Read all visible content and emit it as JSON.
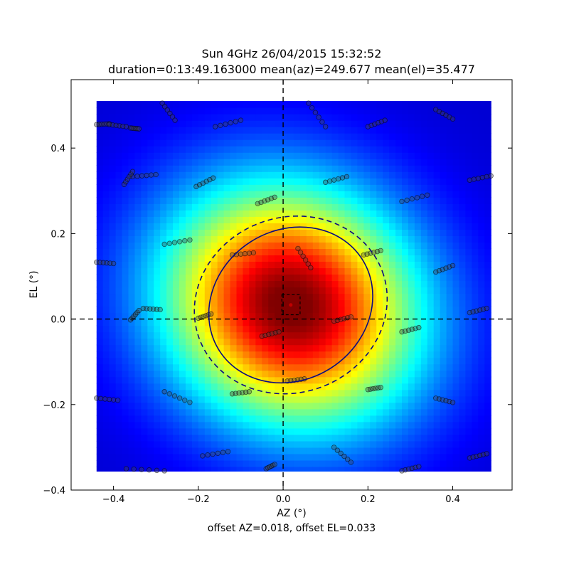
{
  "chart_data": {
    "type": "heatmap",
    "title": "Sun 4GHz 26/04/2015 15:32:52",
    "subtitle": "duration=0:13:49.163000 mean(az)=249.677 mean(el)=35.477",
    "xlabel": "AZ (°)",
    "ylabel": "EL (°)",
    "footer": "offset AZ=0.018, offset EL=0.033",
    "xlim": [
      -0.5,
      0.54
    ],
    "ylim": [
      -0.4,
      0.56
    ],
    "heatmap_extent": {
      "x": [
        -0.44,
        0.49
      ],
      "y": [
        -0.36,
        0.51
      ]
    },
    "beam_center": {
      "az": 0.018,
      "el": 0.033
    },
    "colormap": "jet",
    "x_ticks": [
      -0.4,
      -0.2,
      0.0,
      0.2,
      0.4
    ],
    "x_tick_labels": [
      "−0.4",
      "−0.2",
      "0.0",
      "0.2",
      "0.4"
    ],
    "y_ticks": [
      -0.4,
      -0.2,
      0.0,
      0.2,
      0.4
    ],
    "y_tick_labels": [
      "−0.4",
      "−0.2",
      "0.0",
      "0.2",
      "0.4"
    ],
    "ellipses": [
      {
        "name": "inner",
        "style": "solid",
        "center": [
          0.018,
          0.033
        ],
        "rx": 0.2,
        "ry": 0.175,
        "angle_deg": -33
      },
      {
        "name": "outer",
        "style": "dashed",
        "center": [
          0.018,
          0.033
        ],
        "rx": 0.23,
        "ry": 0.205,
        "angle_deg": -20
      }
    ],
    "center_box": {
      "az": [
        -0.003,
        0.04
      ],
      "el": [
        0.01,
        0.057
      ]
    },
    "scan_segments": [
      {
        "x0": -0.44,
        "y0": 0.455,
        "x1": -0.41,
        "y1": 0.457
      },
      {
        "x0": -0.41,
        "y0": 0.455,
        "x1": -0.37,
        "y1": 0.45
      },
      {
        "x0": -0.36,
        "y0": 0.447,
        "x1": -0.34,
        "y1": 0.445
      },
      {
        "x0": -0.285,
        "y0": 0.505,
        "x1": -0.255,
        "y1": 0.465
      },
      {
        "x0": -0.16,
        "y0": 0.45,
        "x1": -0.1,
        "y1": 0.465
      },
      {
        "x0": 0.06,
        "y0": 0.505,
        "x1": 0.1,
        "y1": 0.45
      },
      {
        "x0": 0.2,
        "y0": 0.45,
        "x1": 0.24,
        "y1": 0.465
      },
      {
        "x0": 0.36,
        "y0": 0.49,
        "x1": 0.4,
        "y1": 0.468
      },
      {
        "x0": -0.355,
        "y0": 0.333,
        "x1": -0.3,
        "y1": 0.338
      },
      {
        "x0": -0.375,
        "y0": 0.315,
        "x1": -0.355,
        "y1": 0.345
      },
      {
        "x0": -0.205,
        "y0": 0.31,
        "x1": -0.165,
        "y1": 0.33
      },
      {
        "x0": 0.1,
        "y0": 0.32,
        "x1": 0.15,
        "y1": 0.333
      },
      {
        "x0": 0.28,
        "y0": 0.275,
        "x1": 0.34,
        "y1": 0.29
      },
      {
        "x0": 0.44,
        "y0": 0.325,
        "x1": 0.49,
        "y1": 0.335
      },
      {
        "x0": -0.06,
        "y0": 0.27,
        "x1": -0.02,
        "y1": 0.285
      },
      {
        "x0": -0.28,
        "y0": 0.175,
        "x1": -0.22,
        "y1": 0.185
      },
      {
        "x0": -0.44,
        "y0": 0.133,
        "x1": -0.4,
        "y1": 0.13
      },
      {
        "x0": -0.12,
        "y0": 0.15,
        "x1": -0.07,
        "y1": 0.155
      },
      {
        "x0": 0.035,
        "y0": 0.165,
        "x1": 0.065,
        "y1": 0.12
      },
      {
        "x0": 0.19,
        "y0": 0.15,
        "x1": 0.23,
        "y1": 0.16
      },
      {
        "x0": 0.36,
        "y0": 0.11,
        "x1": 0.4,
        "y1": 0.125
      },
      {
        "x0": -0.36,
        "y0": -0.002,
        "x1": -0.34,
        "y1": 0.02
      },
      {
        "x0": -0.33,
        "y0": 0.025,
        "x1": -0.29,
        "y1": 0.022
      },
      {
        "x0": -0.2,
        "y0": 0.002,
        "x1": -0.17,
        "y1": 0.012
      },
      {
        "x0": 0.12,
        "y0": -0.005,
        "x1": 0.16,
        "y1": 0.005
      },
      {
        "x0": 0.44,
        "y0": 0.015,
        "x1": 0.48,
        "y1": 0.025
      },
      {
        "x0": -0.05,
        "y0": -0.04,
        "x1": -0.01,
        "y1": -0.03
      },
      {
        "x0": 0.28,
        "y0": -0.03,
        "x1": 0.32,
        "y1": -0.02
      },
      {
        "x0": 0.05,
        "y0": -0.14,
        "x1": 0.01,
        "y1": -0.145
      },
      {
        "x0": -0.44,
        "y0": -0.185,
        "x1": -0.39,
        "y1": -0.19
      },
      {
        "x0": -0.28,
        "y0": -0.17,
        "x1": -0.22,
        "y1": -0.195
      },
      {
        "x0": -0.12,
        "y0": -0.175,
        "x1": -0.08,
        "y1": -0.17
      },
      {
        "x0": 0.2,
        "y0": -0.165,
        "x1": 0.23,
        "y1": -0.16
      },
      {
        "x0": 0.36,
        "y0": -0.185,
        "x1": 0.4,
        "y1": -0.195
      },
      {
        "x0": -0.19,
        "y0": -0.32,
        "x1": -0.13,
        "y1": -0.31
      },
      {
        "x0": -0.37,
        "y0": -0.35,
        "x1": -0.28,
        "y1": -0.355
      },
      {
        "x0": 0.12,
        "y0": -0.3,
        "x1": 0.16,
        "y1": -0.335
      },
      {
        "x0": -0.04,
        "y0": -0.35,
        "x1": -0.02,
        "y1": -0.34
      },
      {
        "x0": 0.28,
        "y0": -0.355,
        "x1": 0.32,
        "y1": -0.345
      },
      {
        "x0": 0.44,
        "y0": -0.325,
        "x1": 0.48,
        "y1": -0.315
      }
    ]
  }
}
